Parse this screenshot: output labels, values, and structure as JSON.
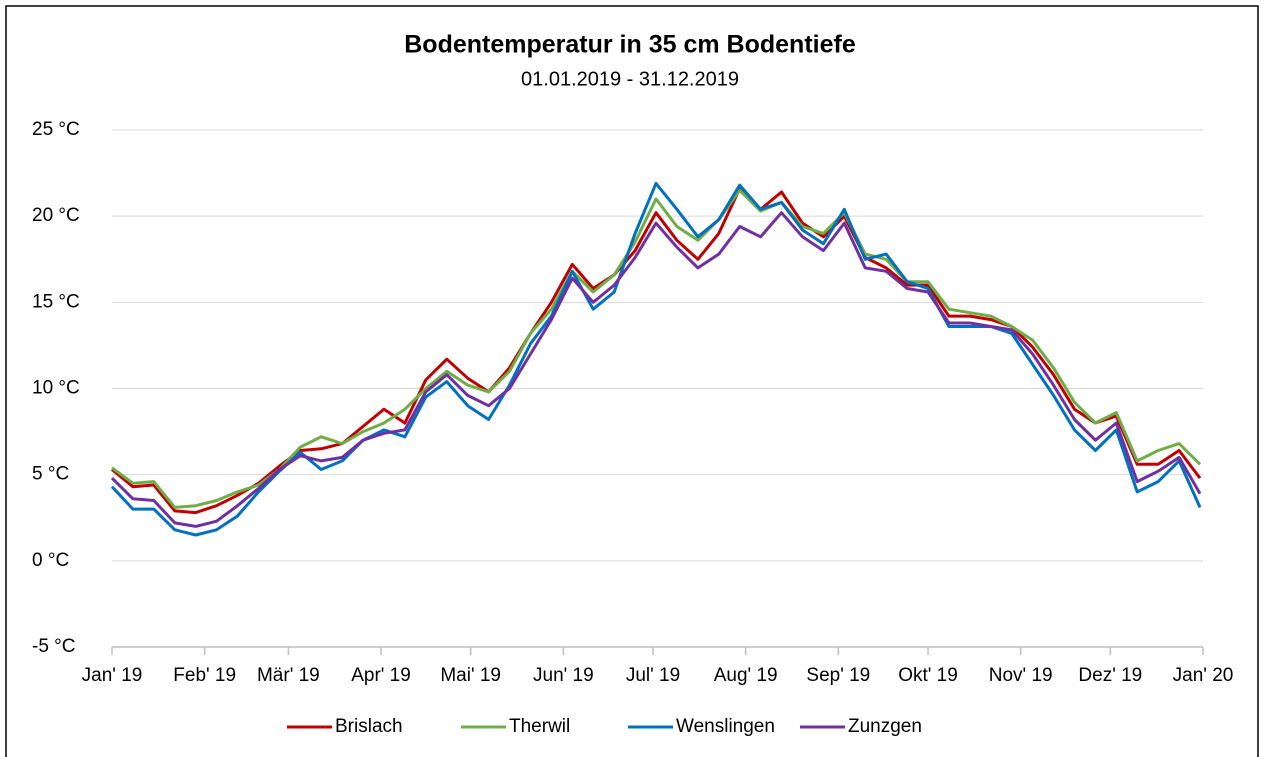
{
  "chart_data": {
    "type": "line",
    "title": "Bodentemperatur in 35 cm Bodentiefe",
    "subtitle": "01.01.2019 - 31.12.2019",
    "x": [
      0,
      7,
      14,
      21,
      28,
      35,
      42,
      49,
      56,
      63,
      70,
      77,
      84,
      91,
      98,
      105,
      112,
      119,
      126,
      133,
      140,
      147,
      154,
      161,
      168,
      175,
      182,
      189,
      196,
      203,
      210,
      217,
      224,
      231,
      238,
      245,
      252,
      259,
      266,
      273,
      280,
      287,
      294,
      301,
      308,
      315,
      322,
      329,
      336,
      343,
      350,
      357,
      364
    ],
    "xlim": [
      0,
      365
    ],
    "xticks": [
      {
        "value": 0,
        "label": "Jan' 19"
      },
      {
        "value": 31,
        "label": "Feb' 19"
      },
      {
        "value": 59,
        "label": "Mär' 19"
      },
      {
        "value": 90,
        "label": "Apr' 19"
      },
      {
        "value": 120,
        "label": "Mai' 19"
      },
      {
        "value": 151,
        "label": "Jun' 19"
      },
      {
        "value": 181,
        "label": "Jul' 19"
      },
      {
        "value": 212,
        "label": "Aug' 19"
      },
      {
        "value": 243,
        "label": "Sep' 19"
      },
      {
        "value": 273,
        "label": "Okt' 19"
      },
      {
        "value": 304,
        "label": "Nov' 19"
      },
      {
        "value": 334,
        "label": "Dez' 19"
      },
      {
        "value": 365,
        "label": "Jan' 20"
      }
    ],
    "ylim": [
      -5,
      25
    ],
    "yticks": [
      {
        "value": -5,
        "label": "-5 °C"
      },
      {
        "value": 0,
        "label": "0 °C"
      },
      {
        "value": 5,
        "label": "5 °C"
      },
      {
        "value": 10,
        "label": "10 °C"
      },
      {
        "value": 15,
        "label": "15 °C"
      },
      {
        "value": 20,
        "label": "20 °C"
      },
      {
        "value": 25,
        "label": "25 °C"
      }
    ],
    "grid": true,
    "legend": "bottom",
    "series": [
      {
        "name": "Brislach",
        "color": "#c00000",
        "values": [
          5.3,
          4.3,
          4.4,
          2.9,
          2.8,
          3.2,
          3.8,
          4.5,
          5.5,
          6.4,
          6.5,
          6.8,
          7.8,
          8.8,
          8.0,
          10.5,
          11.7,
          10.6,
          9.8,
          11.2,
          13.2,
          15.0,
          17.2,
          15.8,
          16.6,
          18.0,
          20.2,
          18.6,
          17.5,
          19.0,
          21.6,
          20.4,
          21.4,
          19.6,
          18.8,
          20.0,
          17.6,
          17.0,
          16.0,
          16.0,
          14.2,
          14.2,
          14.0,
          13.6,
          12.4,
          10.8,
          8.8,
          8.0,
          8.4,
          5.6,
          5.6,
          6.4,
          4.8
        ]
      },
      {
        "name": "Therwil",
        "color": "#70ad47",
        "values": [
          5.4,
          4.5,
          4.6,
          3.1,
          3.2,
          3.5,
          4.0,
          4.4,
          5.3,
          6.6,
          7.2,
          6.8,
          7.5,
          8.0,
          8.8,
          10.0,
          11.0,
          10.2,
          9.8,
          11.0,
          13.2,
          14.6,
          16.8,
          15.6,
          16.6,
          18.5,
          21.0,
          19.4,
          18.6,
          19.8,
          21.5,
          20.3,
          20.8,
          19.4,
          19.0,
          20.2,
          17.8,
          17.5,
          16.2,
          16.2,
          14.6,
          14.4,
          14.2,
          13.6,
          12.8,
          11.2,
          9.2,
          8.0,
          8.6,
          5.8,
          6.4,
          6.8,
          5.6
        ]
      },
      {
        "name": "Wenslingen",
        "color": "#0070c0",
        "values": [
          4.3,
          3.0,
          3.0,
          1.8,
          1.5,
          1.8,
          2.6,
          4.0,
          5.2,
          6.3,
          5.3,
          5.8,
          7.0,
          7.6,
          7.2,
          9.5,
          10.4,
          9.0,
          8.2,
          10.2,
          12.6,
          14.2,
          16.8,
          14.6,
          15.6,
          19.0,
          21.9,
          20.4,
          18.8,
          19.8,
          21.8,
          20.4,
          20.8,
          19.2,
          18.4,
          20.4,
          17.5,
          17.8,
          16.2,
          15.8,
          13.6,
          13.6,
          13.6,
          13.2,
          11.4,
          9.6,
          7.6,
          6.4,
          7.6,
          4.0,
          4.6,
          5.8,
          3.1
        ]
      },
      {
        "name": "Zunzgen",
        "color": "#7030a0",
        "values": [
          4.8,
          3.6,
          3.5,
          2.2,
          2.0,
          2.3,
          3.2,
          4.2,
          5.3,
          6.1,
          5.8,
          6.0,
          7.0,
          7.4,
          7.6,
          9.8,
          10.8,
          9.6,
          9.0,
          10.0,
          12.0,
          14.0,
          16.4,
          15.0,
          16.0,
          17.6,
          19.6,
          18.2,
          17.0,
          17.8,
          19.4,
          18.8,
          20.2,
          18.8,
          18.0,
          19.6,
          17.0,
          16.8,
          15.8,
          15.6,
          13.8,
          13.8,
          13.6,
          13.4,
          12.0,
          10.2,
          8.2,
          7.0,
          8.0,
          4.6,
          5.2,
          6.0,
          3.9
        ]
      }
    ]
  }
}
